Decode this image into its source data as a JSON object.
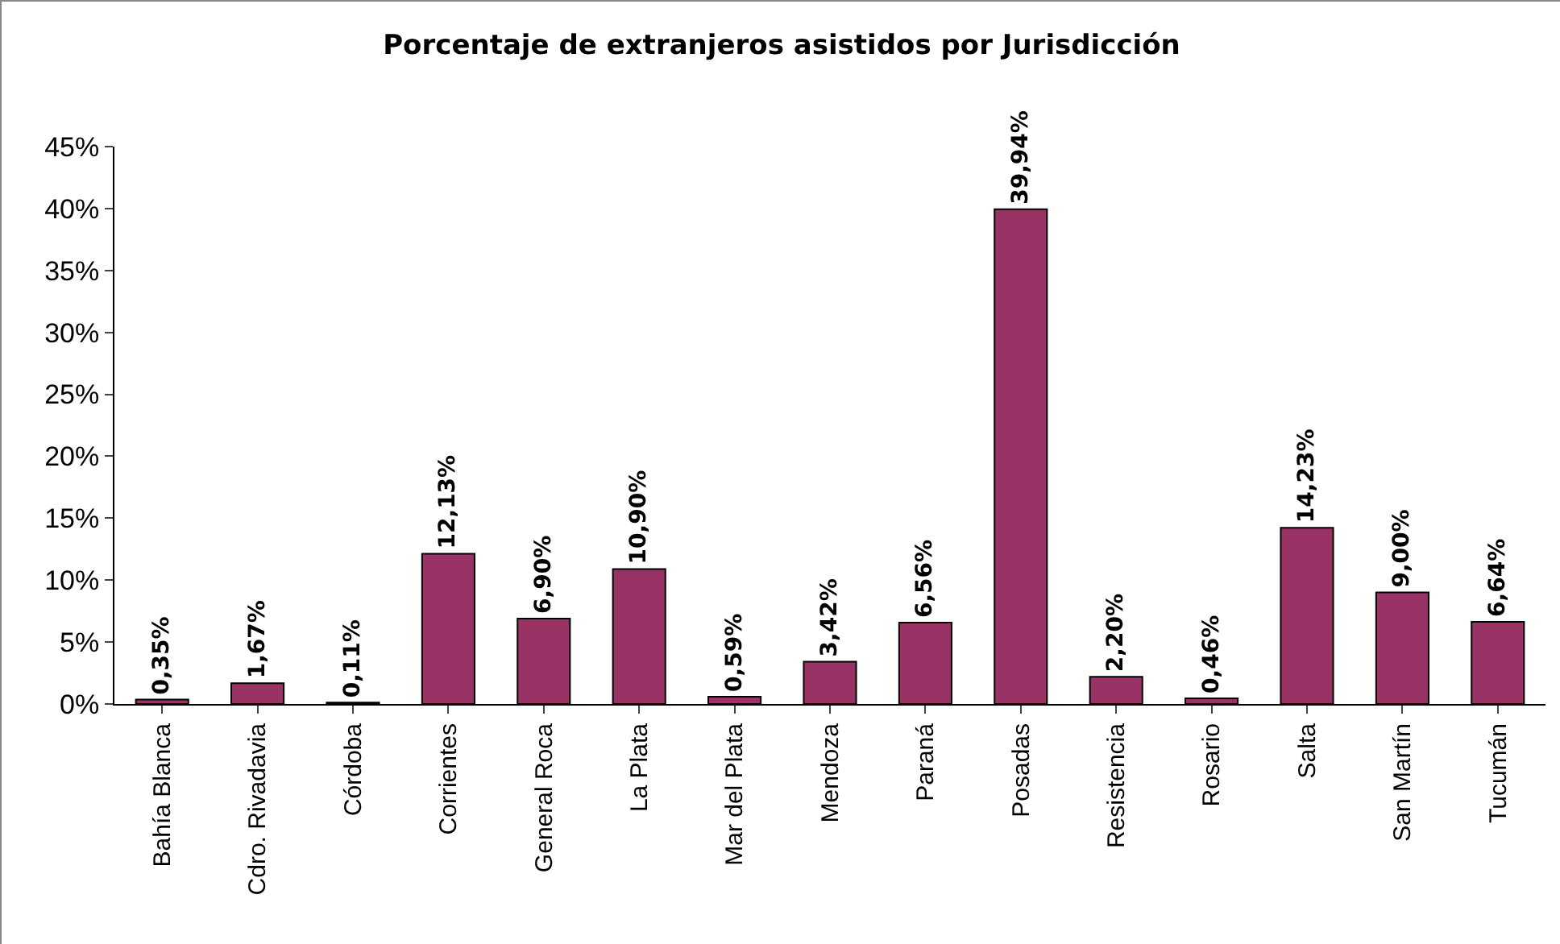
{
  "chart_data": {
    "type": "bar",
    "title": "Porcentaje de extranjeros asistidos por Jurisdicción",
    "categories": [
      "Bahía Blanca",
      "Cdro. Rivadavia",
      "Córdoba",
      "Corrientes",
      "General Roca",
      "La Plata",
      "Mar del Plata",
      "Mendoza",
      "Paraná",
      "Posadas",
      "Resistencia",
      "Rosario",
      "Salta",
      "San Martín",
      "Tucumán"
    ],
    "values": [
      0.35,
      1.67,
      0.11,
      12.13,
      6.9,
      10.9,
      0.59,
      3.42,
      6.56,
      39.94,
      2.2,
      0.46,
      14.23,
      9.0,
      6.64
    ],
    "value_labels": [
      "0,35%",
      "1,67%",
      "0,11%",
      "12,13%",
      "6,90%",
      "10,90%",
      "0,59%",
      "3,42%",
      "6,56%",
      "39,94%",
      "2,20%",
      "0,46%",
      "14,23%",
      "9,00%",
      "6,64%"
    ],
    "color": "#993366",
    "ylim": [
      0,
      45
    ],
    "yticks": [
      {
        "value": 0,
        "label": "0%"
      },
      {
        "value": 5,
        "label": "5%"
      },
      {
        "value": 10,
        "label": "10%"
      },
      {
        "value": 15,
        "label": "15%"
      },
      {
        "value": 20,
        "label": "20%"
      },
      {
        "value": 25,
        "label": "25%"
      },
      {
        "value": 30,
        "label": "30%"
      },
      {
        "value": 35,
        "label": "35%"
      },
      {
        "value": 40,
        "label": "40%"
      },
      {
        "value": 45,
        "label": "45%"
      }
    ],
    "grid": false
  }
}
